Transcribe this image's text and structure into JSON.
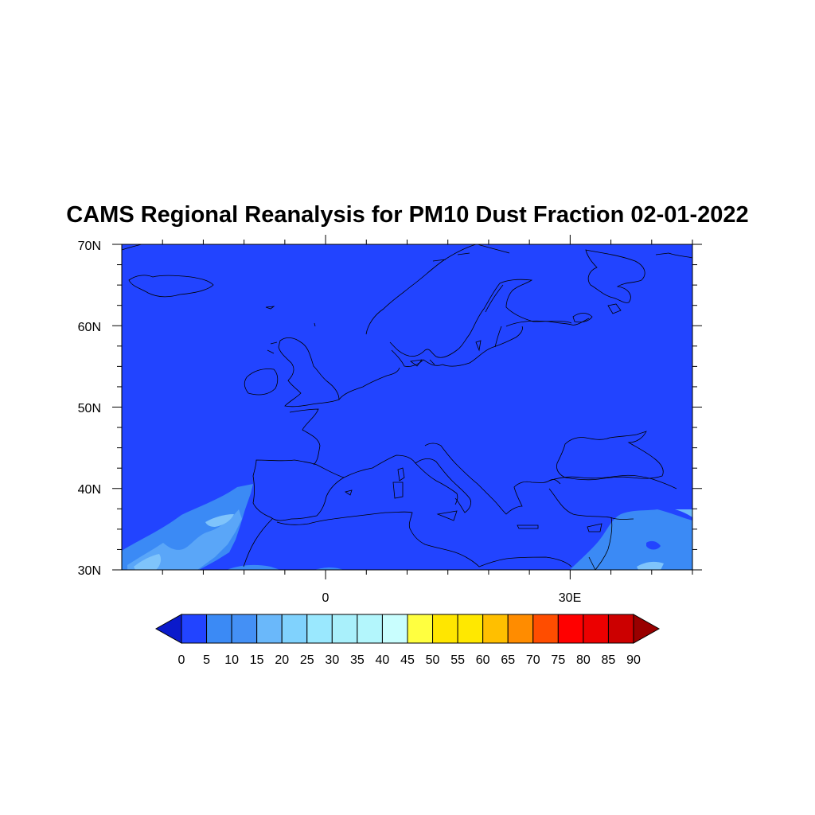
{
  "map": {
    "title": "CAMS Regional Reanalysis for PM10 Dust Fraction 02-01-2022",
    "lat_labels": [
      "70N",
      "60N",
      "50N",
      "40N",
      "30N"
    ],
    "lon_labels": [
      "0",
      "30E"
    ],
    "extent": {
      "lon_min": -25,
      "lon_max": 45,
      "lat_min": 30,
      "lat_max": 70
    },
    "projection": "cylindrical-equidistant",
    "coastline_color": "#000000",
    "background_fill": "#2244ff"
  },
  "legend": {
    "orientation": "horizontal",
    "end_arrows": true,
    "tick_labels": [
      "0",
      "5",
      "10",
      "15",
      "20",
      "25",
      "30",
      "35",
      "40",
      "45",
      "50",
      "55",
      "60",
      "65",
      "70",
      "75",
      "80",
      "85",
      "90"
    ],
    "colors": [
      "#0a1acb",
      "#2244ff",
      "#3b8af5",
      "#4490f5",
      "#6ab8fa",
      "#80d2fd",
      "#9ae8fe",
      "#a9f0fb",
      "#b3f6fc",
      "#c9fefe",
      "#ffff40",
      "#ffe600",
      "#ffe800",
      "#ffbf00",
      "#ff8c00",
      "#ff4d00",
      "#ff0000",
      "#ec0000",
      "#cc0000",
      "#990000"
    ]
  }
}
